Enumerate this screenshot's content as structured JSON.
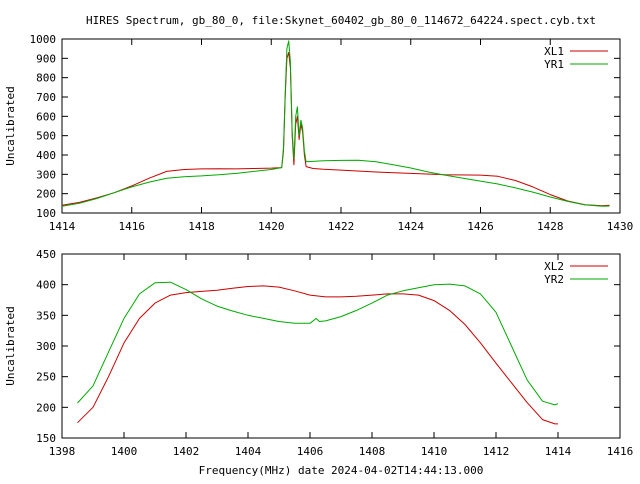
{
  "chart_data": [
    {
      "type": "line",
      "title": "HIRES Spectrum, gb_80_0, file:Skynet_60402_gb_80_0_114672_64224.spect.cyb.txt",
      "xlabel": "",
      "ylabel": "Uncalibrated",
      "xlim": [
        1414,
        1430
      ],
      "ylim": [
        100,
        1000
      ],
      "xticks": [
        1414,
        1416,
        1418,
        1420,
        1422,
        1424,
        1426,
        1428,
        1430
      ],
      "yticks": [
        100,
        200,
        300,
        400,
        500,
        600,
        700,
        800,
        900,
        1000
      ],
      "grid": false,
      "legend": "top-right",
      "series": [
        {
          "name": "XL1",
          "color": "#cc0000",
          "points": [
            [
              1414.0,
              140
            ],
            [
              1414.5,
              155
            ],
            [
              1415,
              178
            ],
            [
              1415.5,
              205
            ],
            [
              1416,
              240
            ],
            [
              1416.5,
              280
            ],
            [
              1417,
              315
            ],
            [
              1417.5,
              325
            ],
            [
              1418,
              328
            ],
            [
              1418.5,
              329
            ],
            [
              1419,
              328
            ],
            [
              1419.5,
              330
            ],
            [
              1420,
              332
            ],
            [
              1420.3,
              335
            ],
            [
              1420.35,
              420
            ],
            [
              1420.4,
              700
            ],
            [
              1420.45,
              900
            ],
            [
              1420.5,
              930
            ],
            [
              1420.55,
              850
            ],
            [
              1420.6,
              500
            ],
            [
              1420.65,
              350
            ],
            [
              1420.7,
              560
            ],
            [
              1420.75,
              600
            ],
            [
              1420.8,
              480
            ],
            [
              1420.85,
              560
            ],
            [
              1420.9,
              520
            ],
            [
              1420.95,
              400
            ],
            [
              1421,
              340
            ],
            [
              1421.2,
              330
            ],
            [
              1421.5,
              326
            ],
            [
              1422,
              322
            ],
            [
              1423,
              312
            ],
            [
              1424,
              305
            ],
            [
              1425,
              298
            ],
            [
              1426,
              296
            ],
            [
              1426.5,
              290
            ],
            [
              1427,
              268
            ],
            [
              1427.5,
              235
            ],
            [
              1428,
              195
            ],
            [
              1428.5,
              162
            ],
            [
              1429,
              143
            ],
            [
              1429.5,
              138
            ],
            [
              1429.7,
              140
            ]
          ]
        },
        {
          "name": "YR1",
          "color": "#00aa00",
          "points": [
            [
              1414.0,
              135
            ],
            [
              1414.5,
              150
            ],
            [
              1415,
              175
            ],
            [
              1415.5,
              205
            ],
            [
              1416,
              235
            ],
            [
              1416.5,
              260
            ],
            [
              1417,
              280
            ],
            [
              1417.5,
              288
            ],
            [
              1418,
              292
            ],
            [
              1418.5,
              298
            ],
            [
              1419,
              305
            ],
            [
              1419.5,
              315
            ],
            [
              1420,
              325
            ],
            [
              1420.3,
              335
            ],
            [
              1420.35,
              440
            ],
            [
              1420.4,
              720
            ],
            [
              1420.45,
              950
            ],
            [
              1420.5,
              990
            ],
            [
              1420.55,
              880
            ],
            [
              1420.6,
              520
            ],
            [
              1420.65,
              380
            ],
            [
              1420.7,
              600
            ],
            [
              1420.75,
              650
            ],
            [
              1420.8,
              500
            ],
            [
              1420.85,
              580
            ],
            [
              1420.9,
              540
            ],
            [
              1420.95,
              420
            ],
            [
              1421,
              365
            ],
            [
              1421.5,
              370
            ],
            [
              1422,
              372
            ],
            [
              1422.5,
              373
            ],
            [
              1423,
              365
            ],
            [
              1423.5,
              350
            ],
            [
              1424,
              333
            ],
            [
              1424.5,
              312
            ],
            [
              1425,
              295
            ],
            [
              1425.5,
              280
            ],
            [
              1426,
              265
            ],
            [
              1426.5,
              250
            ],
            [
              1427,
              230
            ],
            [
              1427.5,
              208
            ],
            [
              1428,
              183
            ],
            [
              1428.5,
              160
            ],
            [
              1429,
              142
            ],
            [
              1429.5,
              135
            ],
            [
              1429.7,
              136
            ]
          ]
        }
      ]
    },
    {
      "type": "line",
      "title": "",
      "xlabel": "Frequency(MHz) date 2024-04-02T14:44:13.000",
      "ylabel": "Uncalibrated",
      "xlim": [
        1398,
        1416
      ],
      "ylim": [
        150,
        450
      ],
      "xticks": [
        1398,
        1400,
        1402,
        1404,
        1406,
        1408,
        1410,
        1412,
        1414,
        1416
      ],
      "yticks": [
        150,
        200,
        250,
        300,
        350,
        400,
        450
      ],
      "grid": false,
      "legend": "top-right",
      "series": [
        {
          "name": "XL2",
          "color": "#cc0000",
          "points": [
            [
              1398.5,
              175
            ],
            [
              1399,
              200
            ],
            [
              1399.5,
              250
            ],
            [
              1400,
              305
            ],
            [
              1400.5,
              345
            ],
            [
              1401,
              370
            ],
            [
              1401.5,
              383
            ],
            [
              1402,
              387
            ],
            [
              1402.5,
              389
            ],
            [
              1403,
              391
            ],
            [
              1403.5,
              394
            ],
            [
              1404,
              397
            ],
            [
              1404.5,
              398
            ],
            [
              1405,
              396
            ],
            [
              1405.5,
              390
            ],
            [
              1406,
              383
            ],
            [
              1406.5,
              380
            ],
            [
              1407,
              380
            ],
            [
              1407.5,
              381
            ],
            [
              1408,
              383
            ],
            [
              1408.5,
              385
            ],
            [
              1409,
              385
            ],
            [
              1409.5,
              383
            ],
            [
              1410,
              374
            ],
            [
              1410.5,
              358
            ],
            [
              1411,
              335
            ],
            [
              1411.5,
              305
            ],
            [
              1412,
              272
            ],
            [
              1412.5,
              240
            ],
            [
              1413,
              208
            ],
            [
              1413.5,
              180
            ],
            [
              1413.9,
              173
            ],
            [
              1414,
              173
            ]
          ]
        },
        {
          "name": "YR2",
          "color": "#00aa00",
          "points": [
            [
              1398.5,
              207
            ],
            [
              1399,
              235
            ],
            [
              1399.5,
              290
            ],
            [
              1400,
              345
            ],
            [
              1400.5,
              385
            ],
            [
              1401,
              403
            ],
            [
              1401.5,
              404
            ],
            [
              1402,
              392
            ],
            [
              1402.5,
              377
            ],
            [
              1403,
              365
            ],
            [
              1403.5,
              357
            ],
            [
              1404,
              350
            ],
            [
              1404.5,
              345
            ],
            [
              1405,
              340
            ],
            [
              1405.5,
              337
            ],
            [
              1406,
              337
            ],
            [
              1406.2,
              345
            ],
            [
              1406.3,
              340
            ],
            [
              1406.5,
              341
            ],
            [
              1407,
              348
            ],
            [
              1407.5,
              358
            ],
            [
              1408,
              370
            ],
            [
              1408.5,
              383
            ],
            [
              1409,
              390
            ],
            [
              1409.5,
              395
            ],
            [
              1410,
              400
            ],
            [
              1410.5,
              401
            ],
            [
              1411,
              398
            ],
            [
              1411.5,
              385
            ],
            [
              1412,
              355
            ],
            [
              1412.5,
              300
            ],
            [
              1413,
              245
            ],
            [
              1413.5,
              210
            ],
            [
              1413.9,
              204
            ],
            [
              1414,
              206
            ]
          ]
        }
      ]
    }
  ]
}
